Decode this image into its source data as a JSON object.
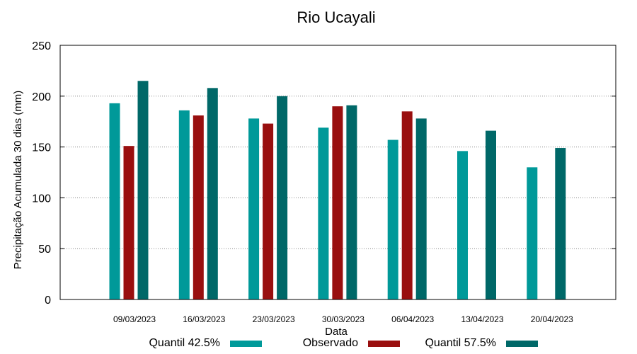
{
  "chart_data": {
    "type": "bar",
    "title": "Rio Ucayali",
    "xlabel": "Data",
    "ylabel": "Precipitação Acumulada 30 dias (mm)",
    "ylim": [
      0,
      250
    ],
    "yticks": [
      0,
      50,
      100,
      150,
      200,
      250
    ],
    "grid": "horizontal dotted",
    "legend_position": "bottom",
    "categories": [
      "09/03/2023",
      "16/03/2023",
      "23/03/2023",
      "30/03/2023",
      "06/04/2023",
      "13/04/2023",
      "20/04/2023"
    ],
    "series": [
      {
        "name": "Quantil 42.5%",
        "color": "#009999",
        "values": [
          193,
          186,
          178,
          169,
          157,
          146,
          130
        ]
      },
      {
        "name": "Observado",
        "color": "#990f0f",
        "values": [
          151,
          181,
          173,
          190,
          185,
          null,
          null
        ]
      },
      {
        "name": "Quantil 57.5%",
        "color": "#006868",
        "values": [
          215,
          208,
          200,
          191,
          178,
          166,
          149
        ]
      }
    ]
  }
}
